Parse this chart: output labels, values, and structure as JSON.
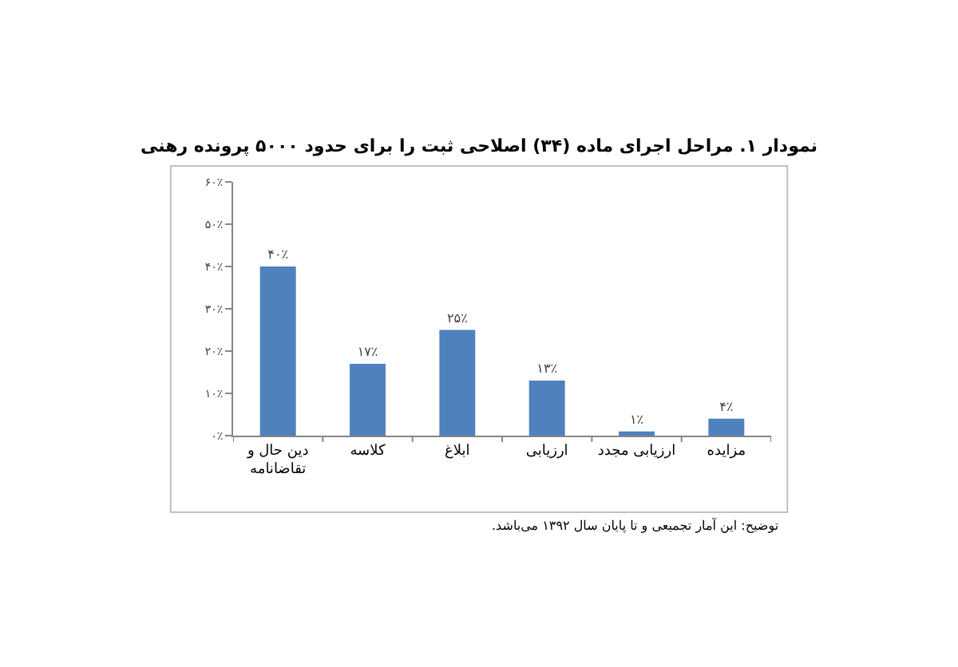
{
  "chart_data": {
    "type": "bar",
    "title": "نمودار ۱. مراحل اجرای ماده (۳۴) اصلاحی ثبت را برای حدود ۵۰۰۰ پرونده رهنی",
    "categories": [
      "دین حال و تقاضانامه",
      "کلاسه",
      "ابلاغ",
      "ارزیابی",
      "ارزیابی مجدد",
      "مزایده"
    ],
    "values": [
      40,
      17,
      25,
      13,
      1,
      4
    ],
    "value_labels": [
      "۴۰٪",
      "۱۷٪",
      "۲۵٪",
      "۱۳٪",
      "۱٪",
      "۴٪"
    ],
    "color": "#4f81bd",
    "ylim": [
      0,
      60
    ],
    "yticks": [
      {
        "value": 0,
        "label": "۰٪"
      },
      {
        "value": 10,
        "label": "۱۰٪"
      },
      {
        "value": 20,
        "label": "۲۰٪"
      },
      {
        "value": 30,
        "label": "۳۰٪"
      },
      {
        "value": 40,
        "label": "۴۰٪"
      },
      {
        "value": 50,
        "label": "۵۰٪"
      },
      {
        "value": 60,
        "label": "۶۰٪"
      }
    ],
    "annotations": [
      "توضیح: این آمار تجمیعی و تا پایان سال ۱۳۹۲ می‌باشد."
    ]
  }
}
